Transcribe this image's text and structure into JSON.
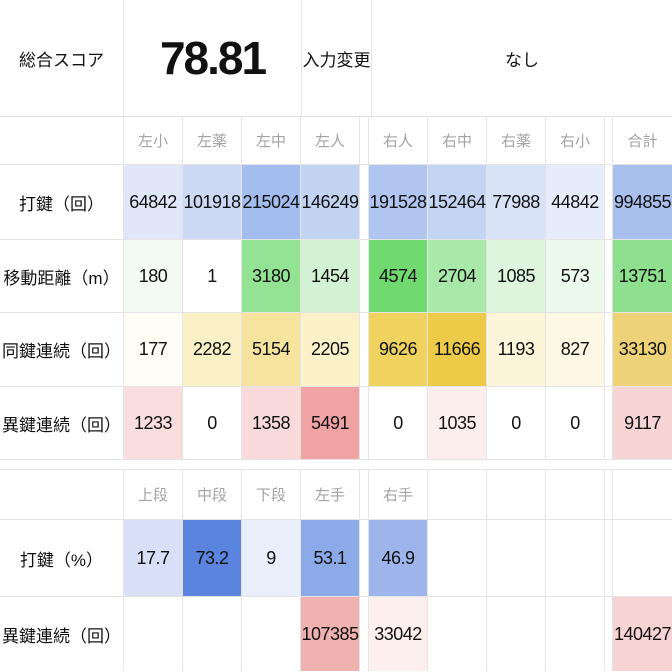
{
  "summary": {
    "score_label": "総合スコア",
    "score_value": "78.81",
    "change_label": "入力変更",
    "change_value": "なし"
  },
  "accent_colors": {
    "keystroke_scale": "#5b84de",
    "distance_scale": "#70d970",
    "same_key_scale": "#edca47",
    "alt_key_scale": "#f0a3a3",
    "gridline": "#e4e4e4",
    "header_text": "#a3a3a3"
  },
  "finger_table": {
    "col_headers": [
      "左小",
      "左薬",
      "左中",
      "左人",
      "右人",
      "右中",
      "右薬",
      "右小",
      "合計"
    ],
    "rows": [
      {
        "label": "打鍵（回）",
        "cells": [
          {
            "v": "64842",
            "bg": "#dfe7f9"
          },
          {
            "v": "101918",
            "bg": "#cdd9f4"
          },
          {
            "v": "215024",
            "bg": "#a3bdee"
          },
          {
            "v": "146249",
            "bg": "#c3d3f2"
          },
          {
            "v": "191528",
            "bg": "#b0c5f0"
          },
          {
            "v": "152464",
            "bg": "#c4d4f3"
          },
          {
            "v": "77988",
            "bg": "#d9e3f7"
          },
          {
            "v": "44842",
            "bg": "#e7ecfb"
          },
          {
            "v": "994855",
            "bg": "#a9c0ee"
          }
        ]
      },
      {
        "label": "移動距離（m）",
        "cells": [
          {
            "v": "180",
            "bg": "#f3faf3"
          },
          {
            "v": "1",
            "bg": "#ffffff"
          },
          {
            "v": "3180",
            "bg": "#94e294"
          },
          {
            "v": "1454",
            "bg": "#d3f2d3"
          },
          {
            "v": "4574",
            "bg": "#70d970"
          },
          {
            "v": "2704",
            "bg": "#a8e8a8"
          },
          {
            "v": "1085",
            "bg": "#dcf5dc"
          },
          {
            "v": "573",
            "bg": "#ecfaec"
          },
          {
            "v": "13751",
            "bg": "#8ee08e"
          }
        ]
      },
      {
        "label": "同鍵連続（回）",
        "cells": [
          {
            "v": "177",
            "bg": "#fffdf4"
          },
          {
            "v": "2282",
            "bg": "#faf0c6"
          },
          {
            "v": "5154",
            "bg": "#f6e49e"
          },
          {
            "v": "2205",
            "bg": "#faf1c9"
          },
          {
            "v": "9626",
            "bg": "#f0d35f"
          },
          {
            "v": "11666",
            "bg": "#edca47"
          },
          {
            "v": "1193",
            "bg": "#fcf5da"
          },
          {
            "v": "827",
            "bg": "#fdf8e4"
          },
          {
            "v": "33130",
            "bg": "#eed277"
          }
        ]
      },
      {
        "label": "異鍵連続（回）",
        "cells": [
          {
            "v": "1233",
            "bg": "#fadede"
          },
          {
            "v": "0",
            "bg": "#ffffff"
          },
          {
            "v": "1358",
            "bg": "#f9dada"
          },
          {
            "v": "5491",
            "bg": "#f0a3a3"
          },
          {
            "v": "0",
            "bg": "#ffffff"
          },
          {
            "v": "1035",
            "bg": "#fdeeee"
          },
          {
            "v": "0",
            "bg": "#ffffff"
          },
          {
            "v": "0",
            "bg": "#ffffff"
          },
          {
            "v": "9117",
            "bg": "#f8d5d5"
          }
        ]
      }
    ]
  },
  "zone_table": {
    "col_headers": [
      "上段",
      "中段",
      "下段",
      "左手",
      "右手",
      "",
      "",
      "",
      ""
    ],
    "rows": [
      {
        "label": "打鍵（%）",
        "cells": [
          {
            "v": "17.7",
            "bg": "#d7e0f6"
          },
          {
            "v": "73.2",
            "bg": "#5b84de"
          },
          {
            "v": "9",
            "bg": "#e9eefb"
          },
          {
            "v": "53.1",
            "bg": "#8caae8"
          },
          {
            "v": "46.9",
            "bg": "#9db5eb"
          },
          {
            "v": "",
            "bg": ""
          },
          {
            "v": "",
            "bg": ""
          },
          {
            "v": "",
            "bg": ""
          },
          {
            "v": "",
            "bg": ""
          }
        ]
      },
      {
        "label": "異鍵連続（回）",
        "cells": [
          {
            "v": "",
            "bg": ""
          },
          {
            "v": "",
            "bg": ""
          },
          {
            "v": "",
            "bg": ""
          },
          {
            "v": "107385",
            "bg": "#f0b1b1"
          },
          {
            "v": "33042",
            "bg": "#fdefed"
          },
          {
            "v": "",
            "bg": ""
          },
          {
            "v": "",
            "bg": ""
          },
          {
            "v": "",
            "bg": ""
          },
          {
            "v": "140427",
            "bg": "#f8d3d3"
          }
        ]
      }
    ]
  }
}
